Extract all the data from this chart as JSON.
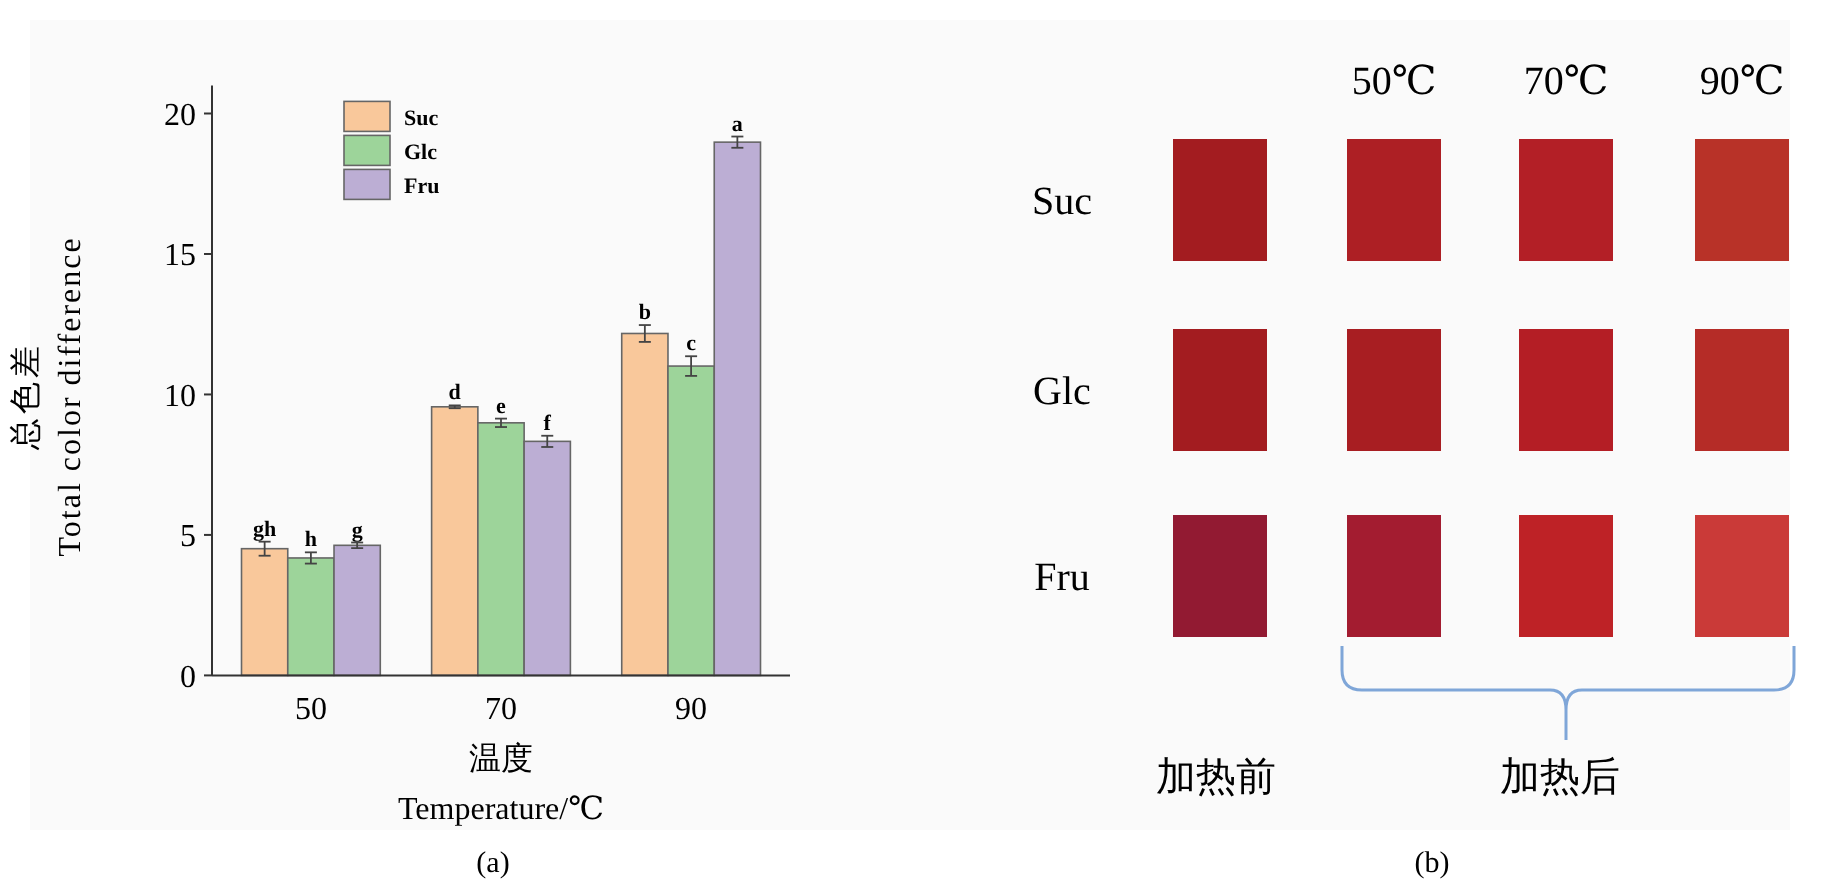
{
  "chart_data": [
    {
      "type": "bar",
      "xlabel": "温度\nTemperature/℃",
      "ylabel": "总色差\nTotal color difference",
      "categories": [
        "50",
        "70",
        "90"
      ],
      "ylim": [
        0,
        21
      ],
      "yticks": [
        0,
        5,
        10,
        15,
        20
      ],
      "legend": "top left",
      "series": [
        {
          "name": "Suc",
          "color": "#f9c89b",
          "values": [
            4.51,
            9.56,
            12.17
          ],
          "errors": [
            0.25,
            0.05,
            0.3
          ],
          "value_labels": [
            "gh",
            "d",
            "b"
          ]
        },
        {
          "name": "Glc",
          "color": "#9dd49a",
          "values": [
            4.18,
            8.99,
            11.01
          ],
          "errors": [
            0.2,
            0.15,
            0.35
          ],
          "value_labels": [
            "h",
            "e",
            "c"
          ]
        },
        {
          "name": "Fru",
          "color": "#bcaed4",
          "values": [
            4.63,
            8.33,
            18.98
          ],
          "errors": [
            0.1,
            0.2,
            0.2
          ],
          "value_labels": [
            "g",
            "f",
            "a"
          ]
        }
      ],
      "annotations": [
        "(a)"
      ]
    },
    {
      "type": "other",
      "annotations": [
        "50℃",
        "70℃",
        "90℃",
        "Suc",
        "Glc",
        "Fru",
        "加热前",
        "加热后",
        "(b)"
      ]
    }
  ]
}
